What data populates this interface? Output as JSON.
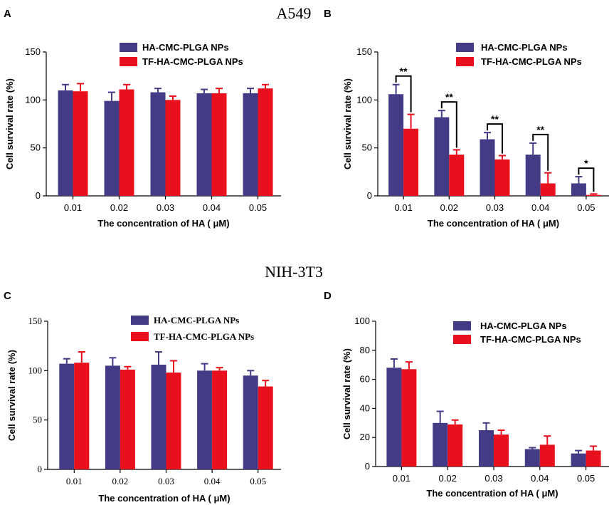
{
  "figure": {
    "section_titles": [
      "A549",
      "NIH-3T3"
    ],
    "colors": {
      "series1": "#433b86",
      "series2": "#e8101d",
      "axis": "#000000"
    }
  },
  "chart_data": [
    {
      "panel": "A",
      "type": "bar",
      "font": "sans",
      "title": "",
      "xlabel": "The concentration of HA ( μM)",
      "ylabel": "Cell survival rate (%)",
      "ylim": [
        0,
        150
      ],
      "yticks": [
        0,
        50,
        100,
        150
      ],
      "categories": [
        "0.01",
        "0.02",
        "0.03",
        "0.04",
        "0.05"
      ],
      "legend_position": "top-right",
      "series": [
        {
          "name": "HA-CMC-PLGA NPs",
          "values": [
            110,
            99,
            108,
            107,
            107
          ],
          "errors": [
            6,
            9,
            4,
            4,
            5
          ]
        },
        {
          "name": "TF-HA-CMC-PLGA NPs",
          "values": [
            109,
            111,
            100,
            107,
            112
          ],
          "errors": [
            8,
            5,
            4,
            5,
            4
          ]
        }
      ],
      "annotations": []
    },
    {
      "panel": "B",
      "type": "bar",
      "font": "sans",
      "title": "",
      "xlabel": "The concentration of HA ( μM)",
      "ylabel": "Cell survival rate (%)",
      "ylim": [
        0,
        150
      ],
      "yticks": [
        0,
        50,
        100,
        150
      ],
      "categories": [
        "0.01",
        "0.02",
        "0.03",
        "0.04",
        "0.05"
      ],
      "legend_position": "top-right",
      "series": [
        {
          "name": "HA-CMC-PLGA NPs",
          "values": [
            106,
            82,
            59,
            43,
            13
          ],
          "errors": [
            10,
            7,
            7,
            12,
            7
          ]
        },
        {
          "name": "TF-HA-CMC-PLGA NPs",
          "values": [
            70,
            43,
            38,
            13,
            1
          ],
          "errors": [
            15,
            5,
            4,
            11,
            1
          ]
        }
      ],
      "annotations": [
        "**",
        "**",
        "**",
        "**",
        "*"
      ]
    },
    {
      "panel": "C",
      "type": "bar",
      "font": "serif",
      "title": "",
      "xlabel": "The concentration of HA ( μM)",
      "ylabel": "Cell survival rate (%)",
      "ylim": [
        0,
        150
      ],
      "yticks": [
        0,
        50,
        100,
        150
      ],
      "categories": [
        "0.01",
        "0.02",
        "0.03",
        "0.04",
        "0.05"
      ],
      "legend_position": "top-right",
      "series": [
        {
          "name": "HA-CMC-PLGA NPs",
          "values": [
            107,
            105,
            106,
            100,
            95
          ],
          "errors": [
            5,
            8,
            13,
            7,
            5
          ]
        },
        {
          "name": "TF-HA-CMC-PLGA NPs",
          "values": [
            108,
            101,
            98,
            100,
            84
          ],
          "errors": [
            11,
            3,
            12,
            3,
            6
          ]
        }
      ],
      "annotations": []
    },
    {
      "panel": "D",
      "type": "bar",
      "font": "sans",
      "title": "",
      "xlabel": "The concentration of HA ( μM)",
      "ylabel": "Cell survival rate (%)",
      "ylim": [
        0,
        100
      ],
      "yticks": [
        0,
        20,
        40,
        60,
        80,
        100
      ],
      "categories": [
        "0.01",
        "0.02",
        "0.03",
        "0.04",
        "0.05"
      ],
      "legend_position": "top-right",
      "series": [
        {
          "name": "HA-CMC-PLGA NPs",
          "values": [
            68,
            30,
            25,
            12,
            9
          ],
          "errors": [
            6,
            8,
            5,
            1,
            2
          ]
        },
        {
          "name": "TF-HA-CMC-PLGA NPs",
          "values": [
            67,
            29,
            22,
            15,
            11
          ],
          "errors": [
            5,
            3,
            3,
            6,
            3
          ]
        }
      ],
      "annotations": []
    }
  ]
}
